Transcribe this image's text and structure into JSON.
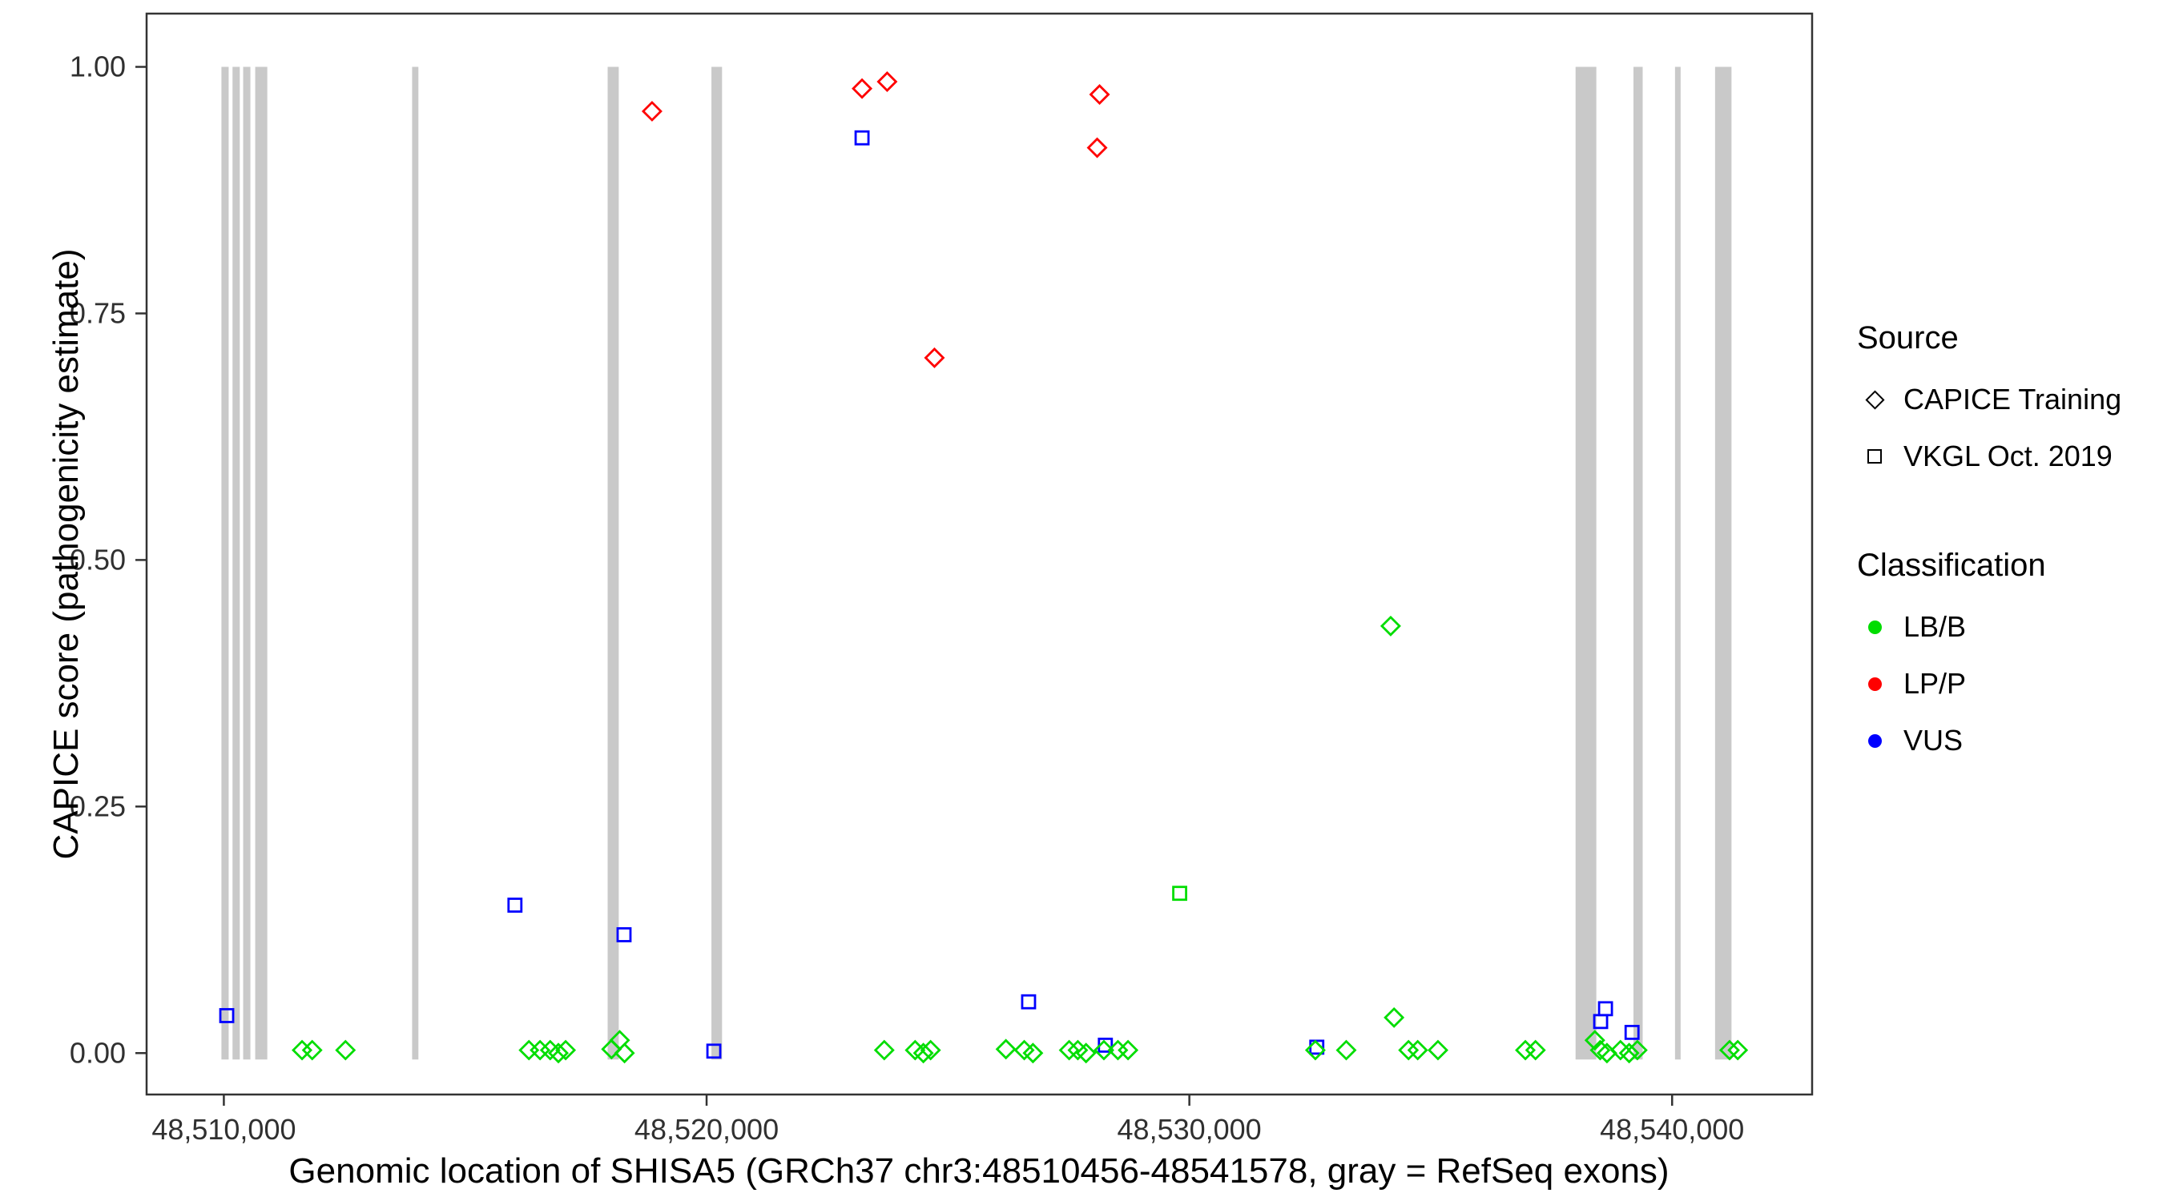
{
  "chart_data": {
    "type": "scatter",
    "title": "",
    "xlabel": "Genomic location of SHISA5 (GRCh37 chr3:48510456-48541578, gray = RefSeq exons)",
    "ylabel": "CAPICE score (pathogenicity estimate)",
    "x_domain": [
      48508400,
      48542900
    ],
    "y_domain": [
      -0.042,
      1.054
    ],
    "grid": "off",
    "legend_position": "right",
    "x_ticks": [
      {
        "value": 48510000,
        "label": "48,510,000"
      },
      {
        "value": 48520000,
        "label": "48,520,000"
      },
      {
        "value": 48530000,
        "label": "48,530,000"
      },
      {
        "value": 48540000,
        "label": "48,540,000"
      }
    ],
    "y_ticks": [
      {
        "value": 0.0,
        "label": "0.00"
      },
      {
        "value": 0.25,
        "label": "0.25"
      },
      {
        "value": 0.5,
        "label": "0.50"
      },
      {
        "value": 0.75,
        "label": "0.75"
      },
      {
        "value": 1.0,
        "label": "1.00"
      }
    ],
    "exon_color": "#c9c9c9",
    "exons": [
      [
        48509950,
        48510100
      ],
      [
        48510180,
        48510330
      ],
      [
        48510400,
        48510550
      ],
      [
        48510650,
        48510900
      ],
      [
        48513900,
        48514030
      ],
      [
        48517950,
        48518180
      ],
      [
        48520100,
        48520320
      ],
      [
        48538000,
        48538430
      ],
      [
        48539200,
        48539390
      ],
      [
        48540060,
        48540170
      ],
      [
        48540890,
        48541230
      ]
    ],
    "classification_colors": {
      "LB/B": "#00dd00",
      "LP/P": "#ff0000",
      "VUS": "#0000ff"
    },
    "source_glyphs": {
      "CAPICE Training": "diamond",
      "VKGL Oct. 2019": "square"
    },
    "points": [
      {
        "x": 48518870,
        "y": 0.955,
        "source": "CAPICE Training",
        "classification": "LP/P"
      },
      {
        "x": 48523220,
        "y": 0.978,
        "source": "CAPICE Training",
        "classification": "LP/P"
      },
      {
        "x": 48523740,
        "y": 0.985,
        "source": "CAPICE Training",
        "classification": "LP/P"
      },
      {
        "x": 48524720,
        "y": 0.705,
        "source": "CAPICE Training",
        "classification": "LP/P"
      },
      {
        "x": 48528140,
        "y": 0.972,
        "source": "CAPICE Training",
        "classification": "LP/P"
      },
      {
        "x": 48528090,
        "y": 0.918,
        "source": "CAPICE Training",
        "classification": "LP/P"
      },
      {
        "x": 48523220,
        "y": 0.928,
        "source": "VKGL Oct. 2019",
        "classification": "VUS"
      },
      {
        "x": 48510060,
        "y": 0.038,
        "source": "VKGL Oct. 2019",
        "classification": "VUS"
      },
      {
        "x": 48516030,
        "y": 0.15,
        "source": "VKGL Oct. 2019",
        "classification": "VUS"
      },
      {
        "x": 48518290,
        "y": 0.12,
        "source": "VKGL Oct. 2019",
        "classification": "VUS"
      },
      {
        "x": 48520150,
        "y": 0.002,
        "source": "VKGL Oct. 2019",
        "classification": "VUS"
      },
      {
        "x": 48526670,
        "y": 0.052,
        "source": "VKGL Oct. 2019",
        "classification": "VUS"
      },
      {
        "x": 48528260,
        "y": 0.008,
        "source": "VKGL Oct. 2019",
        "classification": "VUS"
      },
      {
        "x": 48532640,
        "y": 0.006,
        "source": "VKGL Oct. 2019",
        "classification": "VUS"
      },
      {
        "x": 48538620,
        "y": 0.045,
        "source": "VKGL Oct. 2019",
        "classification": "VUS"
      },
      {
        "x": 48538520,
        "y": 0.032,
        "source": "VKGL Oct. 2019",
        "classification": "VUS"
      },
      {
        "x": 48539170,
        "y": 0.021,
        "source": "VKGL Oct. 2019",
        "classification": "VUS"
      },
      {
        "x": 48529800,
        "y": 0.162,
        "source": "VKGL Oct. 2019",
        "classification": "LB/B"
      },
      {
        "x": 48511620,
        "y": 0.003,
        "source": "CAPICE Training",
        "classification": "LB/B"
      },
      {
        "x": 48511830,
        "y": 0.003,
        "source": "CAPICE Training",
        "classification": "LB/B"
      },
      {
        "x": 48512520,
        "y": 0.003,
        "source": "CAPICE Training",
        "classification": "LB/B"
      },
      {
        "x": 48516320,
        "y": 0.003,
        "source": "CAPICE Training",
        "classification": "LB/B"
      },
      {
        "x": 48516550,
        "y": 0.003,
        "source": "CAPICE Training",
        "classification": "LB/B"
      },
      {
        "x": 48516760,
        "y": 0.003,
        "source": "CAPICE Training",
        "classification": "LB/B"
      },
      {
        "x": 48516930,
        "y": 0.0,
        "source": "CAPICE Training",
        "classification": "LB/B"
      },
      {
        "x": 48517080,
        "y": 0.003,
        "source": "CAPICE Training",
        "classification": "LB/B"
      },
      {
        "x": 48518030,
        "y": 0.004,
        "source": "CAPICE Training",
        "classification": "LB/B"
      },
      {
        "x": 48518200,
        "y": 0.013,
        "source": "CAPICE Training",
        "classification": "LB/B"
      },
      {
        "x": 48518300,
        "y": 0.0,
        "source": "CAPICE Training",
        "classification": "LB/B"
      },
      {
        "x": 48523680,
        "y": 0.003,
        "source": "CAPICE Training",
        "classification": "LB/B"
      },
      {
        "x": 48524320,
        "y": 0.003,
        "source": "CAPICE Training",
        "classification": "LB/B"
      },
      {
        "x": 48524490,
        "y": 0.0,
        "source": "CAPICE Training",
        "classification": "LB/B"
      },
      {
        "x": 48524640,
        "y": 0.003,
        "source": "CAPICE Training",
        "classification": "LB/B"
      },
      {
        "x": 48526200,
        "y": 0.004,
        "source": "CAPICE Training",
        "classification": "LB/B"
      },
      {
        "x": 48526580,
        "y": 0.003,
        "source": "CAPICE Training",
        "classification": "LB/B"
      },
      {
        "x": 48526760,
        "y": 0.0,
        "source": "CAPICE Training",
        "classification": "LB/B"
      },
      {
        "x": 48527510,
        "y": 0.003,
        "source": "CAPICE Training",
        "classification": "LB/B"
      },
      {
        "x": 48527690,
        "y": 0.003,
        "source": "CAPICE Training",
        "classification": "LB/B"
      },
      {
        "x": 48527860,
        "y": 0.0,
        "source": "CAPICE Training",
        "classification": "LB/B"
      },
      {
        "x": 48528230,
        "y": 0.003,
        "source": "CAPICE Training",
        "classification": "LB/B"
      },
      {
        "x": 48528520,
        "y": 0.003,
        "source": "CAPICE Training",
        "classification": "LB/B"
      },
      {
        "x": 48528730,
        "y": 0.003,
        "source": "CAPICE Training",
        "classification": "LB/B"
      },
      {
        "x": 48532610,
        "y": 0.003,
        "source": "CAPICE Training",
        "classification": "LB/B"
      },
      {
        "x": 48533250,
        "y": 0.003,
        "source": "CAPICE Training",
        "classification": "LB/B"
      },
      {
        "x": 48534170,
        "y": 0.433,
        "source": "CAPICE Training",
        "classification": "LB/B"
      },
      {
        "x": 48534240,
        "y": 0.036,
        "source": "CAPICE Training",
        "classification": "LB/B"
      },
      {
        "x": 48534540,
        "y": 0.003,
        "source": "CAPICE Training",
        "classification": "LB/B"
      },
      {
        "x": 48534730,
        "y": 0.003,
        "source": "CAPICE Training",
        "classification": "LB/B"
      },
      {
        "x": 48535150,
        "y": 0.003,
        "source": "CAPICE Training",
        "classification": "LB/B"
      },
      {
        "x": 48536960,
        "y": 0.003,
        "source": "CAPICE Training",
        "classification": "LB/B"
      },
      {
        "x": 48537170,
        "y": 0.003,
        "source": "CAPICE Training",
        "classification": "LB/B"
      },
      {
        "x": 48538400,
        "y": 0.013,
        "source": "CAPICE Training",
        "classification": "LB/B"
      },
      {
        "x": 48538510,
        "y": 0.003,
        "source": "CAPICE Training",
        "classification": "LB/B"
      },
      {
        "x": 48538650,
        "y": 0.0,
        "source": "CAPICE Training",
        "classification": "LB/B"
      },
      {
        "x": 48538930,
        "y": 0.003,
        "source": "CAPICE Training",
        "classification": "LB/B"
      },
      {
        "x": 48539110,
        "y": 0.0,
        "source": "CAPICE Training",
        "classification": "LB/B"
      },
      {
        "x": 48539280,
        "y": 0.003,
        "source": "CAPICE Training",
        "classification": "LB/B"
      },
      {
        "x": 48541190,
        "y": 0.003,
        "source": "CAPICE Training",
        "classification": "LB/B"
      },
      {
        "x": 48541360,
        "y": 0.003,
        "source": "CAPICE Training",
        "classification": "LB/B"
      }
    ]
  },
  "legend": {
    "source": {
      "title": "Source",
      "items": [
        {
          "label": "CAPICE Training",
          "glyph": "diamond"
        },
        {
          "label": "VKGL Oct. 2019",
          "glyph": "square"
        }
      ]
    },
    "classification": {
      "title": "Classification",
      "items": [
        {
          "label": "LB/B",
          "color": "#00dd00"
        },
        {
          "label": "LP/P",
          "color": "#ff0000"
        },
        {
          "label": "VUS",
          "color": "#0000ff"
        }
      ]
    }
  }
}
